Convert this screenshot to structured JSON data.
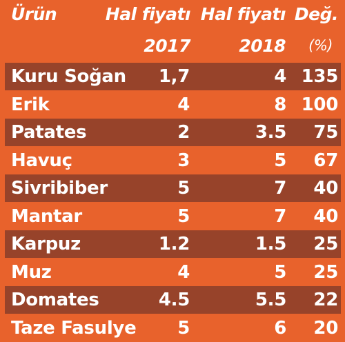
{
  "chart_data": {
    "type": "table",
    "header": {
      "product": "Ürün",
      "price_2017_line1": "Hal fiyatı",
      "price_2017_line2": "2017",
      "price_2018_line1": "Hal fiyatı",
      "price_2018_line2": "2018",
      "change_line1": "Değ.",
      "change_line2": "(%)"
    },
    "rows": [
      {
        "product": "Kuru Soğan",
        "price_2017": "1,7",
        "price_2018": "4",
        "change": "135"
      },
      {
        "product": "Erik",
        "price_2017": "4",
        "price_2018": "8",
        "change": "100"
      },
      {
        "product": "Patates",
        "price_2017": "2",
        "price_2018": "3.5",
        "change": "75"
      },
      {
        "product": "Havuç",
        "price_2017": "3",
        "price_2018": "5",
        "change": "67"
      },
      {
        "product": "Sivribiber",
        "price_2017": "5",
        "price_2018": "7",
        "change": "40"
      },
      {
        "product": "Mantar",
        "price_2017": "5",
        "price_2018": "7",
        "change": "40"
      },
      {
        "product": "Karpuz",
        "price_2017": "1.2",
        "price_2018": "1.5",
        "change": "25"
      },
      {
        "product": "Muz",
        "price_2017": "4",
        "price_2018": "5",
        "change": "25"
      },
      {
        "product": "Domates",
        "price_2017": "4.5",
        "price_2018": "5.5",
        "change": "22"
      },
      {
        "product": "Taze Fasulye",
        "price_2017": "5",
        "price_2018": "6",
        "change": "20"
      }
    ]
  },
  "colors": {
    "background": "#e8622c",
    "stripe": "#97432a",
    "text": "#ffffff"
  }
}
